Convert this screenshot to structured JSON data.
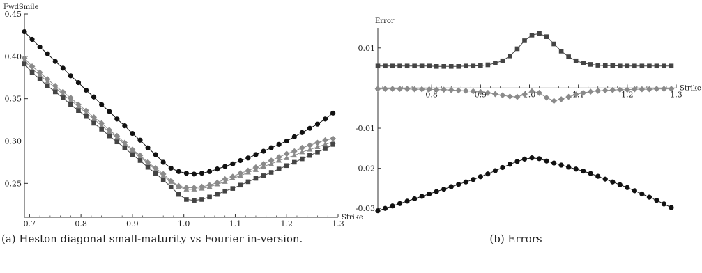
{
  "captions": {
    "a": "(a) Heston diagonal small-maturity vs Fourier in-version.",
    "b": "(b) Errors"
  },
  "colors": {
    "axis": "#333333",
    "series_black": "#111111",
    "series_gray": "#8a8a8a",
    "series_dark": "#444444"
  },
  "chart_data": [
    {
      "type": "line",
      "title": "",
      "xlabel": "Strike",
      "ylabel": "FwdSmile",
      "xlim": [
        0.69,
        1.3
      ],
      "ylim": [
        0.21,
        0.45
      ],
      "x_ticks": [
        "0.7",
        "0.8",
        "0.9",
        "1.0",
        "1.1",
        "1.2",
        "1.3"
      ],
      "y_ticks": [
        "0.25",
        "0.30",
        "0.35",
        "0.40",
        "0.45"
      ],
      "x": [
        0.69,
        0.705,
        0.72,
        0.735,
        0.75,
        0.765,
        0.78,
        0.795,
        0.81,
        0.825,
        0.84,
        0.855,
        0.87,
        0.885,
        0.9,
        0.915,
        0.93,
        0.945,
        0.96,
        0.975,
        0.99,
        1.005,
        1.02,
        1.035,
        1.05,
        1.065,
        1.08,
        1.095,
        1.11,
        1.125,
        1.14,
        1.155,
        1.17,
        1.185,
        1.2,
        1.215,
        1.23,
        1.245,
        1.26,
        1.275,
        1.29
      ],
      "series": [
        {
          "marker": "circle",
          "color": "#111111",
          "values": [
            0.429,
            0.42,
            0.411,
            0.403,
            0.394,
            0.386,
            0.377,
            0.369,
            0.36,
            0.352,
            0.343,
            0.335,
            0.326,
            0.318,
            0.309,
            0.301,
            0.292,
            0.284,
            0.275,
            0.268,
            0.264,
            0.262,
            0.261,
            0.262,
            0.264,
            0.267,
            0.27,
            0.273,
            0.277,
            0.28,
            0.284,
            0.288,
            0.292,
            0.296,
            0.3,
            0.305,
            0.31,
            0.315,
            0.32,
            0.326,
            0.333
          ]
        },
        {
          "marker": "diamond",
          "color": "#8a8a8a",
          "values": [
            0.398,
            0.388,
            0.381,
            0.373,
            0.365,
            0.358,
            0.351,
            0.343,
            0.336,
            0.328,
            0.321,
            0.313,
            0.306,
            0.298,
            0.29,
            0.283,
            0.275,
            0.268,
            0.261,
            0.253,
            0.247,
            0.245,
            0.245,
            0.246,
            0.248,
            0.251,
            0.255,
            0.258,
            0.262,
            0.265,
            0.269,
            0.273,
            0.277,
            0.281,
            0.285,
            0.288,
            0.292,
            0.295,
            0.298,
            0.301,
            0.303
          ]
        },
        {
          "marker": "triangle",
          "color": "#8a8a8a",
          "values": [
            0.395,
            0.385,
            0.378,
            0.37,
            0.363,
            0.355,
            0.348,
            0.341,
            0.333,
            0.326,
            0.318,
            0.311,
            0.304,
            0.296,
            0.289,
            0.281,
            0.274,
            0.266,
            0.259,
            0.252,
            0.246,
            0.243,
            0.243,
            0.244,
            0.246,
            0.249,
            0.252,
            0.256,
            0.259,
            0.263,
            0.266,
            0.27,
            0.273,
            0.277,
            0.28,
            0.283,
            0.287,
            0.29,
            0.293,
            0.296,
            0.299
          ]
        },
        {
          "marker": "square",
          "color": "#444444",
          "values": [
            0.391,
            0.381,
            0.373,
            0.365,
            0.358,
            0.351,
            0.343,
            0.336,
            0.329,
            0.321,
            0.314,
            0.306,
            0.299,
            0.292,
            0.284,
            0.277,
            0.269,
            0.262,
            0.254,
            0.246,
            0.237,
            0.231,
            0.23,
            0.231,
            0.234,
            0.237,
            0.241,
            0.244,
            0.248,
            0.252,
            0.256,
            0.259,
            0.263,
            0.267,
            0.271,
            0.275,
            0.279,
            0.283,
            0.287,
            0.291,
            0.296
          ]
        }
      ]
    },
    {
      "type": "line",
      "title": "",
      "xlabel": "Strike",
      "ylabel": "Error",
      "xlim": [
        0.69,
        1.3
      ],
      "ylim": [
        -0.031,
        0.015
      ],
      "x_ticks": [
        "0.8",
        "0.9",
        "1.0",
        "1.1",
        "1.2",
        "1.3"
      ],
      "y_ticks": [
        "0.01",
        "-0.01",
        "-0.02",
        "-0.03"
      ],
      "x": [
        0.69,
        0.705,
        0.72,
        0.735,
        0.75,
        0.765,
        0.78,
        0.795,
        0.81,
        0.825,
        0.84,
        0.855,
        0.87,
        0.885,
        0.9,
        0.915,
        0.93,
        0.945,
        0.96,
        0.975,
        0.99,
        1.005,
        1.02,
        1.035,
        1.05,
        1.065,
        1.08,
        1.095,
        1.11,
        1.125,
        1.14,
        1.155,
        1.17,
        1.185,
        1.2,
        1.215,
        1.23,
        1.245,
        1.26,
        1.275,
        1.29
      ],
      "series": [
        {
          "marker": "square",
          "color": "#444444",
          "values": [
            0.0055,
            0.0055,
            0.0055,
            0.0055,
            0.0055,
            0.0055,
            0.0055,
            0.0055,
            0.0054,
            0.0054,
            0.0054,
            0.0054,
            0.0055,
            0.0055,
            0.0056,
            0.0058,
            0.0062,
            0.0068,
            0.008,
            0.0098,
            0.0118,
            0.0132,
            0.0136,
            0.0128,
            0.011,
            0.0092,
            0.0078,
            0.0068,
            0.0062,
            0.0059,
            0.0057,
            0.0056,
            0.0056,
            0.0055,
            0.0055,
            0.0055,
            0.0055,
            0.0055,
            0.0055,
            0.0055,
            0.0055
          ]
        },
        {
          "marker": "diamond",
          "color": "#8a8a8a",
          "values": [
            -0.0002,
            -0.0002,
            -0.0002,
            -0.0002,
            -0.0002,
            -0.0003,
            -0.0003,
            -0.0003,
            -0.0004,
            -0.0004,
            -0.0005,
            -0.0006,
            -0.0007,
            -0.0008,
            -0.001,
            -0.0012,
            -0.0015,
            -0.0018,
            -0.0021,
            -0.0022,
            -0.0016,
            -0.0008,
            -0.0012,
            -0.0024,
            -0.0032,
            -0.0028,
            -0.0022,
            -0.0016,
            -0.0012,
            -0.0009,
            -0.0007,
            -0.0006,
            -0.0005,
            -0.0004,
            -0.0004,
            -0.0003,
            -0.0003,
            -0.0003,
            -0.0002,
            -0.0002,
            -0.0002
          ]
        },
        {
          "marker": "circle",
          "color": "#111111",
          "values": [
            -0.0306,
            -0.03,
            -0.0294,
            -0.0288,
            -0.0282,
            -0.0276,
            -0.027,
            -0.0264,
            -0.0258,
            -0.0252,
            -0.0246,
            -0.024,
            -0.0234,
            -0.0228,
            -0.0221,
            -0.0214,
            -0.0206,
            -0.0198,
            -0.019,
            -0.0183,
            -0.0177,
            -0.0174,
            -0.0176,
            -0.0182,
            -0.0187,
            -0.0192,
            -0.0197,
            -0.0202,
            -0.0207,
            -0.0213,
            -0.022,
            -0.0227,
            -0.0234,
            -0.0241,
            -0.0248,
            -0.0256,
            -0.0264,
            -0.0272,
            -0.028,
            -0.0289,
            -0.0298
          ]
        }
      ]
    }
  ]
}
